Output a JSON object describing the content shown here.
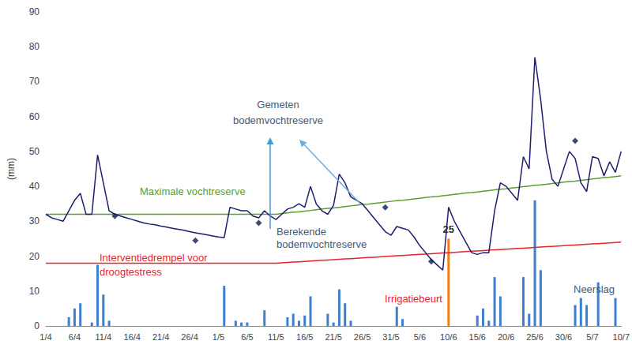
{
  "chart_data": {
    "type": "line",
    "ylabel": "(mm)",
    "ylim": [
      0,
      90
    ],
    "yticks": [
      0,
      10,
      20,
      30,
      40,
      50,
      60,
      70,
      80,
      90
    ],
    "grid": false,
    "categories": [
      "1/4",
      null,
      null,
      null,
      null,
      "6/4",
      null,
      null,
      null,
      null,
      "11/4",
      null,
      null,
      null,
      null,
      "16/4",
      null,
      null,
      null,
      null,
      "21/4",
      null,
      null,
      null,
      null,
      "26/4",
      null,
      null,
      null,
      null,
      "1/5",
      null,
      null,
      null,
      null,
      "6/5",
      null,
      null,
      null,
      null,
      "11/5",
      null,
      null,
      null,
      null,
      "16/5",
      null,
      null,
      null,
      null,
      "21/5",
      null,
      null,
      null,
      null,
      "26/5",
      null,
      null,
      null,
      null,
      "31/5",
      null,
      null,
      null,
      null,
      "5/6",
      null,
      null,
      null,
      null,
      "10/6",
      null,
      null,
      null,
      null,
      "15/6",
      null,
      null,
      null,
      null,
      "20/6",
      null,
      null,
      null,
      null,
      "25/6",
      null,
      null,
      null,
      null,
      "30/6",
      null,
      null,
      null,
      null,
      "5/7",
      null,
      null,
      null,
      null,
      "10/7"
    ],
    "series": [
      {
        "name": "Berekende bodemvochtreserve",
        "type": "line",
        "marker": "none",
        "color": "#1f1d6e",
        "values": [
          32,
          31,
          30.5,
          30,
          33,
          36,
          38,
          32,
          32,
          49,
          41,
          33,
          32,
          31.5,
          31,
          30.5,
          30,
          29.5,
          29.2,
          29,
          28.6,
          28.3,
          28,
          27.7,
          27.4,
          27,
          26.7,
          26.4,
          26.1,
          25.8,
          25.5,
          25.3,
          34,
          33.5,
          33,
          33,
          31.5,
          31,
          33,
          31.5,
          30.5,
          32,
          33.5,
          34,
          35,
          34,
          40,
          35,
          33,
          32,
          34.5,
          43.5,
          41,
          37,
          36,
          35,
          33,
          31,
          29,
          27,
          26,
          28.5,
          28,
          27.5,
          25.5,
          23,
          21,
          19,
          17.5,
          16,
          34,
          30,
          27,
          24,
          21,
          20.5,
          21,
          21,
          33,
          41,
          40,
          38,
          36,
          48.5,
          45,
          77,
          65,
          50,
          42,
          40,
          45,
          50,
          48,
          41,
          38.5,
          48.5,
          48,
          43,
          47,
          44,
          50
        ]
      },
      {
        "name": "Maximale vochtreserve",
        "type": "line",
        "marker": "none",
        "color": "#5a9e32",
        "values": [
          32,
          32,
          32,
          32,
          32,
          32,
          32,
          32,
          32,
          32,
          32,
          32,
          32,
          32,
          32,
          32,
          32,
          32,
          32,
          32,
          32,
          32,
          32,
          32,
          32,
          32,
          32,
          32,
          32,
          32,
          32,
          32,
          32,
          32,
          32,
          32,
          32,
          32,
          32,
          32,
          32,
          32.2,
          32.4,
          32.6,
          32.7,
          32.9,
          33.1,
          33.3,
          33.5,
          33.7,
          33.8,
          34.0,
          34.2,
          34.4,
          34.6,
          34.8,
          34.9,
          35.1,
          35.3,
          35.5,
          35.7,
          35.9,
          36.0,
          36.2,
          36.4,
          36.6,
          36.8,
          37.0,
          37.1,
          37.3,
          37.5,
          37.7,
          37.9,
          38.1,
          38.2,
          38.4,
          38.6,
          38.8,
          39.0,
          39.2,
          39.3,
          39.5,
          39.7,
          39.9,
          40.1,
          40.3,
          40.4,
          40.6,
          40.8,
          41.0,
          41.2,
          41.4,
          41.5,
          41.7,
          41.9,
          42.1,
          42.3,
          42.5,
          42.6,
          42.8,
          43.0
        ]
      },
      {
        "name": "Interventiedrempel voor droogtestress",
        "type": "line",
        "marker": "none",
        "color": "#e8242a",
        "values": [
          18,
          18,
          18,
          18,
          18,
          18,
          18,
          18,
          18,
          18,
          18,
          18,
          18,
          18,
          18,
          18,
          18,
          18,
          18,
          18,
          18,
          18,
          18,
          18,
          18,
          18,
          18,
          18,
          18,
          18,
          18,
          18,
          18,
          18,
          18,
          18,
          18,
          18,
          18,
          18,
          18,
          18.1,
          18.2,
          18.3,
          18.4,
          18.5,
          18.6,
          18.7,
          18.8,
          18.9,
          19.0,
          19.1,
          19.2,
          19.3,
          19.4,
          19.5,
          19.6,
          19.7,
          19.8,
          19.9,
          20.0,
          20.1,
          20.2,
          20.3,
          20.4,
          20.5,
          20.6,
          20.7,
          20.8,
          20.9,
          21.0,
          21.1,
          21.2,
          21.3,
          21.4,
          21.5,
          21.6,
          21.7,
          21.8,
          21.9,
          22.0,
          22.1,
          22.2,
          22.3,
          22.4,
          22.5,
          22.6,
          22.7,
          22.8,
          22.9,
          23.0,
          23.1,
          23.2,
          23.3,
          23.4,
          23.5,
          23.6,
          23.7,
          23.8,
          23.9,
          24.0
        ]
      },
      {
        "name": "Gemeten bodemvochtreserve",
        "type": "scatter",
        "marker": "diamond",
        "color": "#0f1b4d",
        "values": [
          null,
          null,
          null,
          null,
          null,
          null,
          null,
          null,
          null,
          null,
          null,
          null,
          31.5,
          null,
          null,
          null,
          null,
          null,
          null,
          null,
          null,
          null,
          null,
          null,
          null,
          null,
          24.5,
          null,
          null,
          null,
          null,
          null,
          null,
          null,
          null,
          null,
          null,
          29.5,
          null,
          null,
          null,
          null,
          null,
          null,
          null,
          null,
          null,
          null,
          null,
          null,
          null,
          null,
          null,
          null,
          null,
          null,
          null,
          null,
          null,
          34,
          null,
          null,
          null,
          null,
          null,
          null,
          null,
          18.5,
          null,
          null,
          null,
          null,
          null,
          null,
          null,
          null,
          null,
          null,
          null,
          null,
          null,
          null,
          null,
          null,
          null,
          null,
          null,
          null,
          null,
          null,
          null,
          null,
          53,
          null,
          null,
          null,
          null,
          null,
          null,
          null,
          null
        ]
      },
      {
        "name": "Neerslag",
        "type": "bar",
        "color": "#3e7fd0",
        "values": [
          0,
          0,
          0,
          0,
          2.5,
          5,
          6.5,
          0,
          1,
          17.5,
          9,
          1.5,
          0,
          0,
          0,
          0,
          0,
          0,
          0,
          0,
          0,
          0,
          0,
          0,
          0,
          0,
          0,
          0,
          0,
          0,
          0,
          11.5,
          0,
          1.5,
          1,
          1,
          0,
          0,
          4.5,
          0,
          0,
          0,
          2.5,
          3.5,
          1.5,
          3,
          8.5,
          0,
          0,
          3.5,
          1,
          10.5,
          6.5,
          1.5,
          0,
          0,
          0,
          0,
          0,
          0,
          0,
          5.5,
          2,
          0,
          0,
          0,
          0,
          0,
          0,
          0,
          0,
          0,
          0,
          0,
          0,
          3,
          5,
          1.5,
          14,
          8.5,
          0,
          0,
          0,
          14,
          3.5,
          36,
          16,
          0,
          0,
          0,
          0,
          0,
          6,
          8,
          6,
          0,
          12.5,
          0,
          0,
          8,
          0
        ]
      },
      {
        "name": "Irrigatiebeurt",
        "type": "bar",
        "color": "#f07f16",
        "data_labels": true,
        "values": [
          null,
          null,
          null,
          null,
          null,
          null,
          null,
          null,
          null,
          null,
          null,
          null,
          null,
          null,
          null,
          null,
          null,
          null,
          null,
          null,
          null,
          null,
          null,
          null,
          null,
          null,
          null,
          null,
          null,
          null,
          null,
          null,
          null,
          null,
          null,
          null,
          null,
          null,
          null,
          null,
          null,
          null,
          null,
          null,
          null,
          null,
          null,
          null,
          null,
          null,
          null,
          null,
          null,
          null,
          null,
          null,
          null,
          null,
          null,
          null,
          null,
          null,
          null,
          null,
          null,
          null,
          null,
          null,
          null,
          null,
          25,
          null,
          null,
          null,
          null,
          null,
          null,
          null,
          null,
          null,
          null,
          null,
          null,
          null,
          null,
          null,
          null,
          null,
          null,
          null,
          null,
          null,
          null,
          null,
          null,
          null,
          null,
          null,
          null,
          null,
          null
        ]
      }
    ]
  }
}
